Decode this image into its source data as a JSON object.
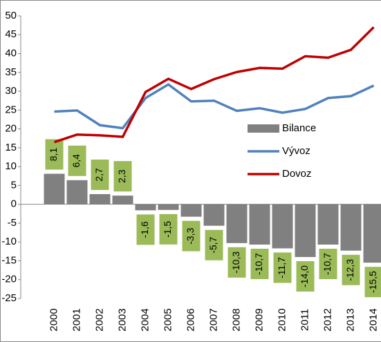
{
  "chart_data": {
    "type": "bar",
    "categories": [
      "2000",
      "2001",
      "2002",
      "2003",
      "2004",
      "2005",
      "2006",
      "2007",
      "2008",
      "2009",
      "2010",
      "2011",
      "2012",
      "2013",
      "2014"
    ],
    "series": [
      {
        "name": "Bilance",
        "type": "bar",
        "color": "#808080",
        "values": [
          8.1,
          6.4,
          2.7,
          2.3,
          -1.6,
          -1.5,
          -3.3,
          -5.7,
          -10.3,
          -10.7,
          -11.7,
          -14.0,
          -10.7,
          -12.3,
          -15.5
        ],
        "value_labels": [
          "8,1",
          "6,4",
          "2,7",
          "2,3",
          "-1,6",
          "-1,5",
          "-3,3",
          "-5,7",
          "-10,3",
          "-10,7",
          "-11,7",
          "-14,0",
          "-10,7",
          "-12,3",
          "-15,5"
        ],
        "label_color": "#9bbb59"
      },
      {
        "name": "Vývoz",
        "type": "line",
        "color": "#4f81bd",
        "values": [
          24.6,
          24.9,
          21.0,
          20.2,
          28.2,
          31.8,
          27.3,
          27.5,
          24.8,
          25.5,
          24.3,
          25.3,
          28.2,
          28.7,
          31.5
        ]
      },
      {
        "name": "Dovoz",
        "type": "line",
        "color": "#c00000",
        "values": [
          16.5,
          18.5,
          18.3,
          17.9,
          29.8,
          33.3,
          30.6,
          33.2,
          35.1,
          36.2,
          36.0,
          39.3,
          38.9,
          41.0,
          47.0
        ]
      }
    ],
    "ylim": [
      -25,
      50
    ],
    "yticks": [
      -25,
      -20,
      -15,
      -10,
      -5,
      0,
      5,
      10,
      15,
      20,
      25,
      30,
      35,
      40,
      45,
      50
    ],
    "grid": false
  }
}
